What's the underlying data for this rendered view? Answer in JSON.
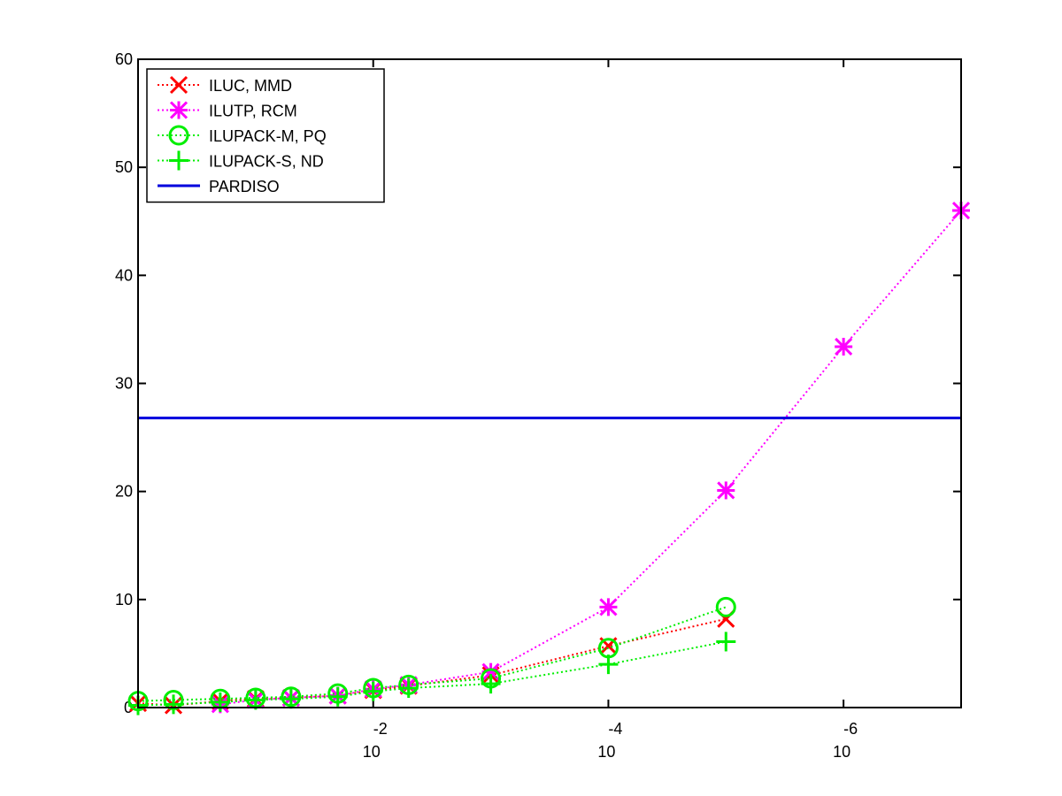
{
  "chart_data": {
    "type": "line",
    "title": "",
    "xlabel": "",
    "ylabel": "",
    "x_scale": "log-reversed",
    "xlim": [
      1,
      1e-07
    ],
    "ylim": [
      0,
      60
    ],
    "yticks": [
      0,
      10,
      20,
      30,
      40,
      50,
      60
    ],
    "xticks": [
      {
        "value": 0.01,
        "base": "10",
        "exp": "-2"
      },
      {
        "value": 0.0001,
        "base": "10",
        "exp": "-4"
      },
      {
        "value": 1e-06,
        "base": "10",
        "exp": "-6"
      }
    ],
    "grid": false,
    "legend_position": "top-left",
    "series": [
      {
        "name": "ILUC, MMD",
        "color": "#ff0000",
        "marker": "x",
        "line": "dotted",
        "x": [
          1,
          0.5,
          0.2,
          0.1,
          0.05,
          0.02,
          0.01,
          0.005,
          0.001,
          0.0001,
          1e-05
        ],
        "y": [
          0.4,
          0.2,
          0.6,
          0.8,
          0.9,
          1.1,
          1.6,
          2.0,
          3.0,
          5.7,
          8.2
        ]
      },
      {
        "name": "ILUTP, RCM",
        "color": "#ff00ff",
        "marker": "asterisk",
        "line": "dotted",
        "x": [
          0.2,
          0.1,
          0.05,
          0.02,
          0.01,
          0.005,
          0.001,
          0.0001,
          1e-05,
          1e-06,
          1e-07
        ],
        "y": [
          0.3,
          0.7,
          0.9,
          1.1,
          1.7,
          2.1,
          3.3,
          9.3,
          20.1,
          33.4,
          46.0
        ]
      },
      {
        "name": "ILUPACK-M, PQ",
        "color": "#00ee00",
        "marker": "circle",
        "line": "dotted",
        "x": [
          1,
          0.5,
          0.2,
          0.1,
          0.05,
          0.02,
          0.01,
          0.005,
          0.001,
          0.0001,
          1e-05
        ],
        "y": [
          0.6,
          0.7,
          0.8,
          0.9,
          1.0,
          1.3,
          1.8,
          2.1,
          2.7,
          5.5,
          9.3
        ]
      },
      {
        "name": "ILUPACK-S, ND",
        "color": "#00ee00",
        "marker": "plus",
        "line": "dotted",
        "x": [
          1,
          0.5,
          0.2,
          0.1,
          0.05,
          0.02,
          0.01,
          0.005,
          0.001,
          0.0001,
          1e-05
        ],
        "y": [
          0.2,
          0.3,
          0.5,
          0.7,
          0.8,
          1.0,
          1.5,
          1.8,
          2.2,
          4.0,
          6.1
        ]
      },
      {
        "name": "PARDISO",
        "color": "#0000dd",
        "marker": "none",
        "line": "solid",
        "x": [
          1,
          1e-07
        ],
        "y": [
          26.8,
          26.8
        ]
      }
    ]
  }
}
